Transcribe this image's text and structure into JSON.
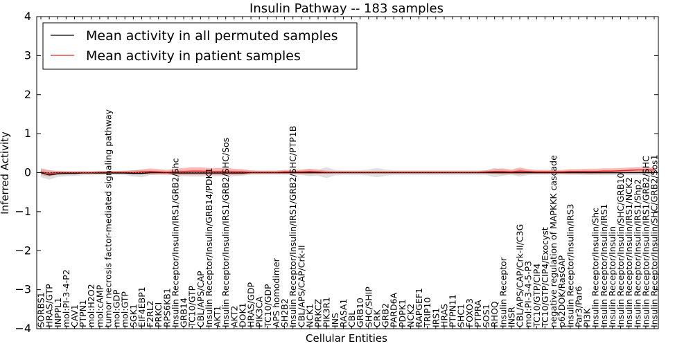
{
  "chart_data": {
    "type": "line",
    "title": "Insulin Pathway -- 183 samples",
    "xlabel": "Cellular Entities",
    "ylabel": "Inferred Activity",
    "ylim": [
      -4,
      4
    ],
    "yticks": [
      -4,
      -3,
      -2,
      -1,
      0,
      1,
      2,
      3,
      4
    ],
    "ytick_labels": [
      "−4",
      "−3",
      "−2",
      "−1",
      "0",
      "1",
      "2",
      "3",
      "4"
    ],
    "legend_position": "top-left",
    "categories": [
      "SORBS1",
      "HRAS/GTP",
      "INPPL1",
      "mol:PI-3-4-P2",
      "CAV1",
      "PTPN1",
      "mol:H2O2",
      "mol:cAMP",
      "tumor necrosis factor-mediated signaling pathway",
      "mol:GDP",
      "mol:GTP",
      "SGK1",
      "EIF4EBP1",
      "F2RL2",
      "PRKCI",
      "RPS6KB1",
      "Insulin Receptor/Insulin/IRS1/GRB2/Shc",
      "GRB14",
      "TC10/GTP",
      "CBL/APS/CAP",
      "Insulin Receptor/Insulin/GRB14/PDK1",
      "AKT1",
      "Insulin Receptor/Insulin/IRS1/GRB2/SHC/Sos",
      "AKT2",
      "DOK1",
      "HRAS/GDP",
      "PIK3CA",
      "TC10/GDP",
      "APS homodimer",
      "SH2B2",
      "Insulin Receptor/Insulin/IRS1/GRB2/SHC/PTP1B",
      "CBL/APS/CAP/Crk-II",
      "NCK1",
      "PRKCZ",
      "PIK3R1",
      "INS",
      "RASA1",
      "CBL",
      "GRB10",
      "SHC/SHIP",
      "CRK",
      "GRB2",
      "PARD6A",
      "PDPK1",
      "NCK2",
      "RAPGEF1",
      "TRIP10",
      "IRS1",
      "HRAS",
      "PTPN11",
      "SHC1",
      "FOXO3",
      "PTPRA",
      "SOS1",
      "RHOQ",
      "Insulin Receptor",
      "INSR",
      "CBL/APS/CAP/Crk-II/C3G",
      "mol:PI-3-4-5-P3",
      "TC10/GTP/CIP4",
      "TC10/GTP/CIP4/Exocyst",
      "negative regulation of MAPKKK cascade",
      "p62DOK/RasGAP",
      "Insulin Receptor/Insulin/IRS3",
      "Par3/Par6",
      "PI3K",
      "Insulin Receptor/Insulin/Shc",
      "Insulin Receptor/Insulin/IRS1",
      "Insulin Receptor/Insulin",
      "Insulin Receptor/Insulin/SHC/GRB10",
      "Insulin Receptor/Insulin/IRS1/NCK2",
      "Insulin Receptor/Insulin/IRS1/Shp2",
      "Insulin Receptor/Insulin/IRS1/GRB2/SHC",
      "Insulin Receptor/Insulin/SHC/GRB2/Sos1"
    ],
    "series": [
      {
        "name": "Mean activity in all permuted samples",
        "color": "#000000",
        "values": [
          0.0,
          -0.06,
          -0.03,
          -0.02,
          -0.02,
          -0.01,
          -0.01,
          -0.01,
          -0.01,
          -0.01,
          -0.01,
          -0.02,
          -0.02,
          0.0,
          0.0,
          0.0,
          -0.01,
          -0.01,
          -0.01,
          -0.01,
          -0.01,
          -0.01,
          -0.01,
          -0.01,
          -0.01,
          0.0,
          0.0,
          0.0,
          0.0,
          0.0,
          0.0,
          0.0,
          0.0,
          0.0,
          0.0,
          0.0,
          0.0,
          0.0,
          0.0,
          0.0,
          0.0,
          0.0,
          0.0,
          0.0,
          0.0,
          0.0,
          0.0,
          0.0,
          0.0,
          0.0,
          0.0,
          0.0,
          0.0,
          0.0,
          0.0,
          0.0,
          0.0,
          0.0,
          0.0,
          0.0,
          0.0,
          0.0,
          0.0,
          0.0,
          0.0,
          0.0,
          0.0,
          0.0,
          0.0,
          0.0,
          0.0,
          0.0,
          0.0,
          0.0
        ],
        "band": [
          0.12,
          0.12,
          0.08,
          0.07,
          0.06,
          0.06,
          0.05,
          0.05,
          0.05,
          0.05,
          0.05,
          0.08,
          0.1,
          0.06,
          0.05,
          0.05,
          0.06,
          0.08,
          0.09,
          0.09,
          0.08,
          0.08,
          0.08,
          0.08,
          0.07,
          0.05,
          0.05,
          0.05,
          0.05,
          0.05,
          0.05,
          0.06,
          0.09,
          0.08,
          0.14,
          0.07,
          0.06,
          0.06,
          0.06,
          0.08,
          0.12,
          0.08,
          0.06,
          0.06,
          0.06,
          0.06,
          0.06,
          0.06,
          0.06,
          0.06,
          0.06,
          0.06,
          0.06,
          0.06,
          0.12,
          0.08,
          0.05,
          0.1,
          0.06,
          0.05,
          0.05,
          0.05,
          0.05,
          0.06,
          0.06,
          0.06,
          0.06,
          0.06,
          0.06,
          0.06,
          0.06,
          0.06,
          0.06,
          0.06
        ]
      },
      {
        "name": "Mean activity in patient samples",
        "color": "#e8201c",
        "values": [
          0.02,
          -0.02,
          0.0,
          0.0,
          0.0,
          0.0,
          0.0,
          0.01,
          0.01,
          0.01,
          0.01,
          0.01,
          0.02,
          0.03,
          0.02,
          0.01,
          0.02,
          0.03,
          0.04,
          0.04,
          0.03,
          0.03,
          0.03,
          0.02,
          0.02,
          0.01,
          0.01,
          0.01,
          0.01,
          0.02,
          0.02,
          0.02,
          0.03,
          0.02,
          0.01,
          0.01,
          0.01,
          0.01,
          0.01,
          0.01,
          0.01,
          0.01,
          0.01,
          0.01,
          0.01,
          0.01,
          0.01,
          0.01,
          0.01,
          0.01,
          0.01,
          0.01,
          0.01,
          0.02,
          0.03,
          0.03,
          0.02,
          0.04,
          0.03,
          0.02,
          0.02,
          0.02,
          0.02,
          0.03,
          0.03,
          0.03,
          0.03,
          0.04,
          0.04,
          0.05,
          0.06,
          0.07,
          0.07,
          0.07
        ],
        "band": [
          0.08,
          0.08,
          0.04,
          0.03,
          0.03,
          0.03,
          0.03,
          0.03,
          0.03,
          0.03,
          0.04,
          0.05,
          0.06,
          0.08,
          0.07,
          0.06,
          0.08,
          0.09,
          0.1,
          0.1,
          0.09,
          0.09,
          0.09,
          0.08,
          0.07,
          0.05,
          0.04,
          0.04,
          0.04,
          0.05,
          0.05,
          0.06,
          0.07,
          0.05,
          0.04,
          0.03,
          0.03,
          0.03,
          0.03,
          0.03,
          0.03,
          0.03,
          0.03,
          0.03,
          0.03,
          0.03,
          0.03,
          0.03,
          0.03,
          0.03,
          0.03,
          0.03,
          0.03,
          0.04,
          0.06,
          0.08,
          0.06,
          0.09,
          0.06,
          0.05,
          0.05,
          0.05,
          0.05,
          0.06,
          0.06,
          0.07,
          0.07,
          0.07,
          0.07,
          0.07,
          0.07,
          0.07,
          0.07,
          0.07
        ]
      }
    ]
  }
}
